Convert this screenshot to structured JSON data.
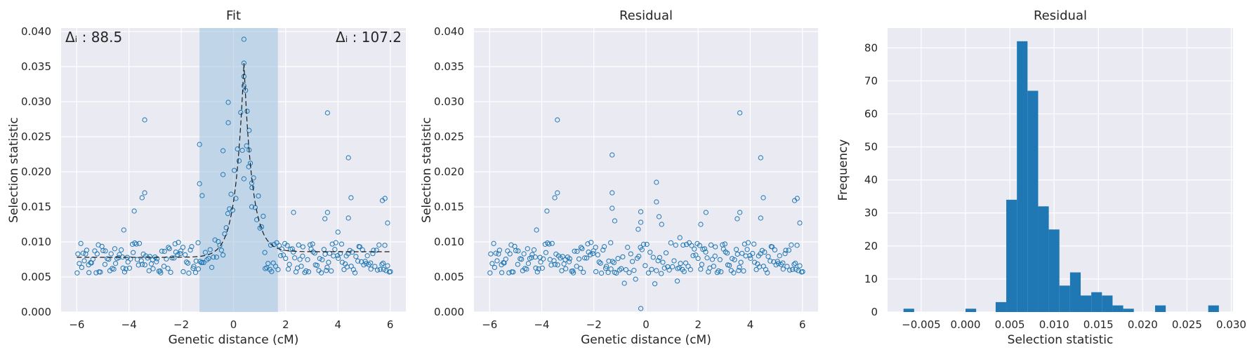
{
  "chart_data": [
    {
      "type": "scatter",
      "title": "Fit",
      "xlabel": "Genetic distance (cM)",
      "ylabel": "Selection statistic",
      "xlim": [
        -6.6,
        6.6
      ],
      "ylim": [
        0,
        0.0405
      ],
      "xticks": [
        -6,
        -4,
        -2,
        0,
        2,
        4,
        6
      ],
      "xtick_labels": [
        "−6",
        "−4",
        "−2",
        "0",
        "2",
        "4",
        "6"
      ],
      "yticks": [
        0,
        0.005,
        0.01,
        0.015,
        0.02,
        0.025,
        0.03,
        0.035,
        0.04
      ],
      "ytick_labels": [
        "0.000",
        "0.005",
        "0.010",
        "0.015",
        "0.020",
        "0.025",
        "0.030",
        "0.035",
        "0.040"
      ],
      "grid": true,
      "shaded_region": [
        -1.3,
        1.7
      ],
      "annotations": [
        {
          "text": "Δᵢ : 88.5",
          "position": "top-left"
        },
        {
          "text": "Δᵢ : 107.2",
          "position": "top-right"
        }
      ],
      "fit_curve": {
        "style": "dashed",
        "color": "#1a1a1a",
        "baseline": 0.0078,
        "right_baseline": 0.0086,
        "peak": 0.0355,
        "center": 0.4
      },
      "outliers": [
        {
          "x": -3.4,
          "y": 0.0274
        },
        {
          "x": -3.4,
          "y": 0.017
        },
        {
          "x": -3.5,
          "y": 0.0163
        },
        {
          "x": -3.8,
          "y": 0.0144
        },
        {
          "x": -4.2,
          "y": 0.0117
        },
        {
          "x": -1.3,
          "y": 0.0239
        },
        {
          "x": -1.3,
          "y": 0.0183
        },
        {
          "x": -1.2,
          "y": 0.0166
        },
        {
          "x": -0.4,
          "y": 0.023
        },
        {
          "x": -0.4,
          "y": 0.0196
        },
        {
          "x": -0.2,
          "y": 0.0299
        },
        {
          "x": -0.2,
          "y": 0.027
        },
        {
          "x": 0.4,
          "y": 0.0389
        },
        {
          "x": 0.4,
          "y": 0.0355
        },
        {
          "x": 0.4,
          "y": 0.0336
        },
        {
          "x": 0.5,
          "y": 0.0237
        },
        {
          "x": 0.6,
          "y": 0.0259
        },
        {
          "x": 0.6,
          "y": 0.0231
        },
        {
          "x": 0.4,
          "y": 0.019
        },
        {
          "x": 0.7,
          "y": 0.0184
        },
        {
          "x": 0.7,
          "y": 0.015
        },
        {
          "x": 3.6,
          "y": 0.0284
        },
        {
          "x": 3.6,
          "y": 0.0142
        },
        {
          "x": 3.5,
          "y": 0.0133
        },
        {
          "x": 4.4,
          "y": 0.022
        },
        {
          "x": 4.5,
          "y": 0.0163
        },
        {
          "x": 4.4,
          "y": 0.0134
        },
        {
          "x": 5.8,
          "y": 0.0162
        },
        {
          "x": 5.7,
          "y": 0.0159
        },
        {
          "x": 5.9,
          "y": 0.0127
        },
        {
          "x": 2.3,
          "y": 0.0142
        },
        {
          "x": 4.0,
          "y": 0.0114
        }
      ]
    },
    {
      "type": "scatter",
      "title": "Residual",
      "xlabel": "Genetic distance (cM)",
      "ylabel": "Selection statistic",
      "xlim": [
        -6.6,
        6.6
      ],
      "ylim": [
        0,
        0.0405
      ],
      "xticks": [
        -6,
        -4,
        -2,
        0,
        2,
        4,
        6
      ],
      "xtick_labels": [
        "−6",
        "−4",
        "−2",
        "0",
        "2",
        "4",
        "6"
      ],
      "yticks": [
        0,
        0.005,
        0.01,
        0.015,
        0.02,
        0.025,
        0.03,
        0.035,
        0.04
      ],
      "ytick_labels": [
        "0.000",
        "0.005",
        "0.010",
        "0.015",
        "0.020",
        "0.025",
        "0.030",
        "0.035",
        "0.040"
      ],
      "grid": true,
      "outliers": [
        {
          "x": -3.4,
          "y": 0.0274
        },
        {
          "x": -3.4,
          "y": 0.017
        },
        {
          "x": -3.5,
          "y": 0.0163
        },
        {
          "x": -3.8,
          "y": 0.0144
        },
        {
          "x": -4.2,
          "y": 0.0117
        },
        {
          "x": -1.3,
          "y": 0.0224
        },
        {
          "x": -1.3,
          "y": 0.017
        },
        {
          "x": -1.3,
          "y": 0.0148
        },
        {
          "x": -1.2,
          "y": 0.013
        },
        {
          "x": -0.2,
          "y": 0.0143
        },
        {
          "x": -0.2,
          "y": 0.0128
        },
        {
          "x": -0.3,
          "y": 0.0118
        },
        {
          "x": -0.2,
          "y": 0.0005
        },
        {
          "x": 0.4,
          "y": 0.0185
        },
        {
          "x": 0.4,
          "y": 0.0157
        },
        {
          "x": 0.5,
          "y": 0.0136
        },
        {
          "x": 0.6,
          "y": 0.0125
        },
        {
          "x": 1.3,
          "y": 0.0106
        },
        {
          "x": 3.6,
          "y": 0.0284
        },
        {
          "x": 3.6,
          "y": 0.0142
        },
        {
          "x": 3.5,
          "y": 0.0133
        },
        {
          "x": 4.4,
          "y": 0.022
        },
        {
          "x": 4.5,
          "y": 0.0163
        },
        {
          "x": 4.4,
          "y": 0.0134
        },
        {
          "x": 5.8,
          "y": 0.0162
        },
        {
          "x": 5.7,
          "y": 0.0159
        },
        {
          "x": 5.9,
          "y": 0.0127
        },
        {
          "x": 2.3,
          "y": 0.0142
        },
        {
          "x": 2.1,
          "y": 0.0125
        }
      ]
    },
    {
      "type": "bar",
      "subtype": "histogram",
      "title": "Residual",
      "xlabel": "Selection statistic",
      "ylabel": "Frequency",
      "xlim": [
        -0.0088,
        0.0302
      ],
      "ylim": [
        0,
        86
      ],
      "xticks": [
        -0.005,
        0,
        0.005,
        0.01,
        0.015,
        0.02,
        0.025,
        0.03
      ],
      "xtick_labels": [
        "−0.005",
        "0.000",
        "0.005",
        "0.010",
        "0.015",
        "0.020",
        "0.025",
        "0.030"
      ],
      "yticks": [
        0,
        10,
        20,
        30,
        40,
        50,
        60,
        70,
        80
      ],
      "ytick_labels": [
        "0",
        "10",
        "20",
        "30",
        "40",
        "50",
        "60",
        "70",
        "80"
      ],
      "grid": true,
      "color": "#1f77b4",
      "bins": [
        {
          "x0": -0.007,
          "x1": -0.0058,
          "count": 1
        },
        {
          "x0": 0.0,
          "x1": 0.0012,
          "count": 1
        },
        {
          "x0": 0.0034,
          "x1": 0.0046,
          "count": 3
        },
        {
          "x0": 0.0046,
          "x1": 0.0058,
          "count": 34
        },
        {
          "x0": 0.0058,
          "x1": 0.007,
          "count": 82
        },
        {
          "x0": 0.007,
          "x1": 0.0082,
          "count": 67
        },
        {
          "x0": 0.0082,
          "x1": 0.0094,
          "count": 32
        },
        {
          "x0": 0.0094,
          "x1": 0.0106,
          "count": 25
        },
        {
          "x0": 0.0106,
          "x1": 0.0118,
          "count": 8
        },
        {
          "x0": 0.0118,
          "x1": 0.013,
          "count": 12
        },
        {
          "x0": 0.013,
          "x1": 0.0142,
          "count": 5
        },
        {
          "x0": 0.0142,
          "x1": 0.0154,
          "count": 6
        },
        {
          "x0": 0.0154,
          "x1": 0.0166,
          "count": 5
        },
        {
          "x0": 0.0166,
          "x1": 0.0178,
          "count": 2
        },
        {
          "x0": 0.0178,
          "x1": 0.019,
          "count": 1
        },
        {
          "x0": 0.0214,
          "x1": 0.0226,
          "count": 2
        },
        {
          "x0": 0.0274,
          "x1": 0.0286,
          "count": 2
        }
      ]
    }
  ],
  "colors": {
    "axes_bg": "#eaeaf2",
    "grid": "#ffffff",
    "marker": "#1f77b4",
    "shade": "#9fc2e0",
    "bar": "#1f77b4"
  }
}
